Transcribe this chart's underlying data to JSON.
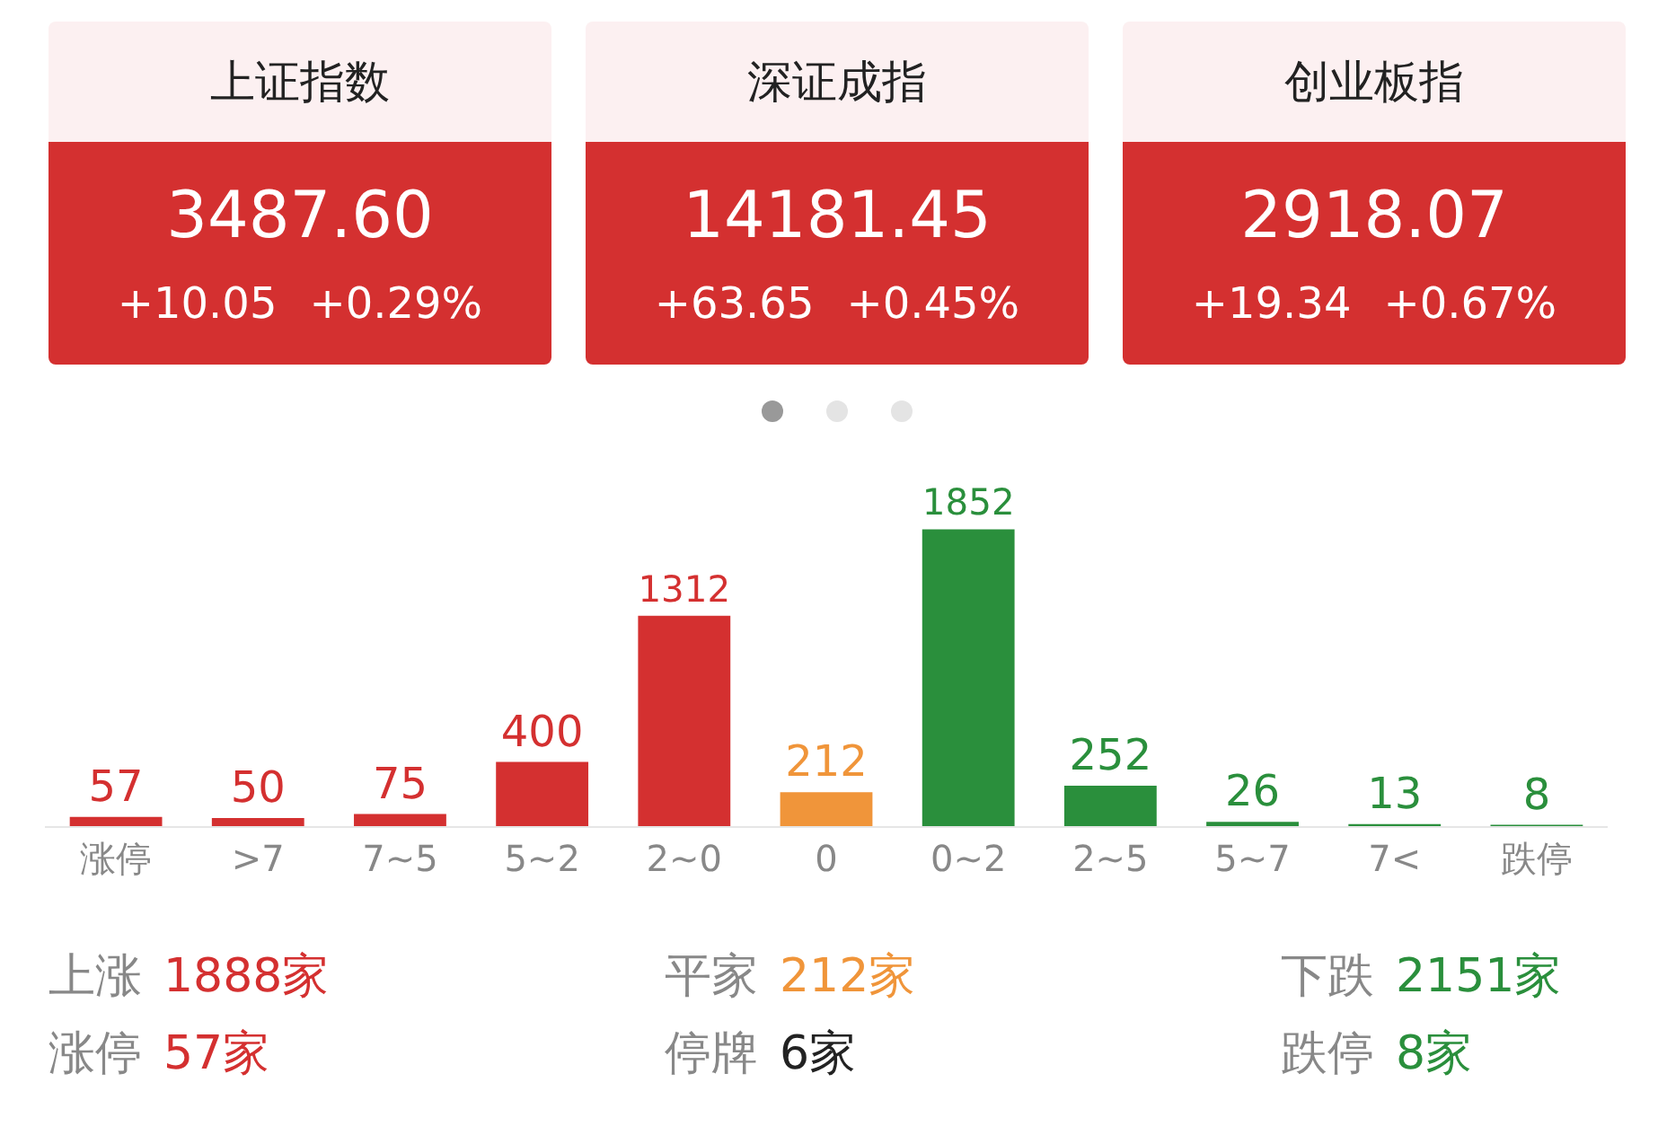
{
  "chart_data": [
    {
      "type": "other",
      "title": "上证指数",
      "annotations": [
        "3487.60",
        "+10.05",
        "+0.29%"
      ]
    },
    {
      "type": "other",
      "title": "深证成指",
      "annotations": [
        "14181.45",
        "+63.65",
        "+0.45%"
      ]
    },
    {
      "type": "other",
      "title": "创业板指",
      "annotations": [
        "2918.07",
        "+19.34",
        "+0.67%"
      ]
    },
    {
      "type": "bar",
      "categories": [
        "涨停",
        ">7",
        "7~5",
        "5~2",
        "2~0",
        "0",
        "0~2",
        "2~5",
        "5~7",
        "7<",
        "跌停"
      ],
      "values": [
        57,
        50,
        75,
        400,
        1312,
        212,
        1852,
        252,
        26,
        13,
        8
      ],
      "colors": [
        "#d43030",
        "#d43030",
        "#d43030",
        "#d43030",
        "#d43030",
        "#f0953a",
        "#2a8f3c",
        "#2a8f3c",
        "#2a8f3c",
        "#2a8f3c",
        "#2a8f3c"
      ],
      "data_labels": true,
      "annotations": [
        "上涨",
        "1888家",
        "涨停",
        "57家",
        "平家",
        "212家",
        "停牌",
        "6家",
        "下跌",
        "2151家",
        "跌停",
        "8家"
      ]
    }
  ]
}
